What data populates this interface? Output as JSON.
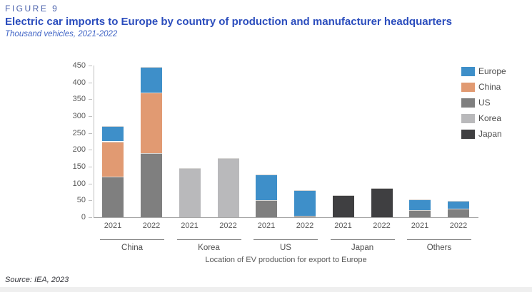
{
  "header": {
    "figure_label": "FIGURE 9",
    "title": "Electric car imports to Europe by country of production and manufacturer headquarters",
    "subtitle": "Thousand vehicles, 2021-2022"
  },
  "source": "Source: IEA, 2023",
  "chart_data": {
    "type": "bar",
    "stacked": true,
    "title": "Electric car imports to Europe by country of production and manufacturer headquarters",
    "subtitle": "Thousand vehicles, 2021-2022",
    "xlabel": "Location of EV production for export to Europe",
    "ylabel": "Thousand vehicles",
    "ylim": [
      0,
      450
    ],
    "ytick_step": 50,
    "grid": false,
    "legend_position": "top-right",
    "groups": [
      "China",
      "Korea",
      "US",
      "Japan",
      "Others"
    ],
    "years": [
      "2021",
      "2022"
    ],
    "categories": [
      "China 2021",
      "China 2022",
      "Korea 2021",
      "Korea 2022",
      "US 2021",
      "US 2022",
      "Japan 2021",
      "Japan 2022",
      "Others 2021",
      "Others 2022"
    ],
    "series": [
      {
        "name": "Europe",
        "color": "#3e8fc9",
        "values": [
          45,
          75,
          0,
          0,
          77,
          75,
          0,
          0,
          31,
          23
        ]
      },
      {
        "name": "China",
        "color": "#e19a72",
        "values": [
          105,
          180,
          0,
          0,
          0,
          0,
          0,
          0,
          0,
          0
        ]
      },
      {
        "name": "US",
        "color": "#7f7f7f",
        "values": [
          120,
          190,
          0,
          0,
          50,
          5,
          0,
          0,
          22,
          25
        ]
      },
      {
        "name": "Korea",
        "color": "#b9b9bb",
        "values": [
          0,
          0,
          145,
          175,
          0,
          0,
          0,
          0,
          0,
          0
        ]
      },
      {
        "name": "Japan",
        "color": "#3f3f41",
        "values": [
          0,
          0,
          0,
          0,
          0,
          0,
          65,
          87,
          0,
          0
        ]
      }
    ],
    "stack_order_bottom_to_top": [
      "Japan",
      "Korea",
      "US",
      "China",
      "Europe"
    ]
  }
}
